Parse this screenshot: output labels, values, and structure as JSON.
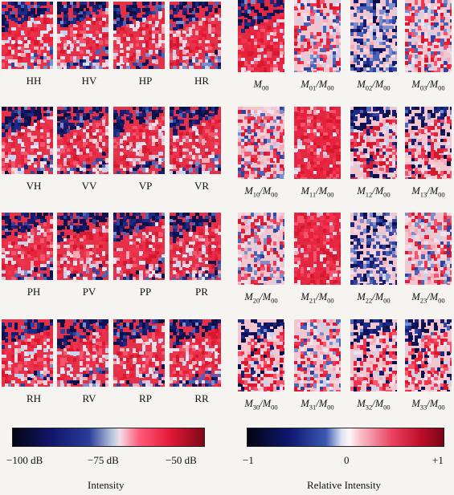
{
  "left_panels": {
    "labels": [
      "HH",
      "HV",
      "HP",
      "HR",
      "VH",
      "VV",
      "VP",
      "VR",
      "PH",
      "PV",
      "PP",
      "PR",
      "RH",
      "RV",
      "RP",
      "RR"
    ]
  },
  "right_panels": {
    "labels": [
      [
        "M",
        "00",
        ""
      ],
      [
        "M",
        "01",
        "/M00"
      ],
      [
        "M",
        "02",
        "/M00"
      ],
      [
        "M",
        "03",
        "/M00"
      ],
      [
        "M",
        "10",
        "/M00"
      ],
      [
        "M",
        "11",
        "/M00"
      ],
      [
        "M",
        "12",
        "/M00"
      ],
      [
        "M",
        "13",
        "/M00"
      ],
      [
        "M",
        "20",
        "/M00"
      ],
      [
        "M",
        "21",
        "/M00"
      ],
      [
        "M",
        "22",
        "/M00"
      ],
      [
        "M",
        "23",
        "/M00"
      ],
      [
        "M",
        "30",
        "/M00"
      ],
      [
        "M",
        "31",
        "/M00"
      ],
      [
        "M",
        "32",
        "/M00"
      ],
      [
        "M",
        "33",
        "/M00"
      ]
    ]
  },
  "colorbars": {
    "left": {
      "ticks": [
        "−100 dB",
        "−75 dB",
        "−50 dB"
      ],
      "caption": "Intensity",
      "colors": [
        "#050712",
        "#10156a",
        "#2b3d9a",
        "#f3dde6",
        "#ff5a7a",
        "#e21a38",
        "#7d0716"
      ]
    },
    "right": {
      "ticks": [
        "−1",
        "0",
        "+1"
      ],
      "caption": "Relative Intensity",
      "colors": [
        "#040512",
        "#0e1870",
        "#3c58b0",
        "#fff6f7",
        "#e8405e",
        "#c00f2b",
        "#780515"
      ]
    }
  }
}
